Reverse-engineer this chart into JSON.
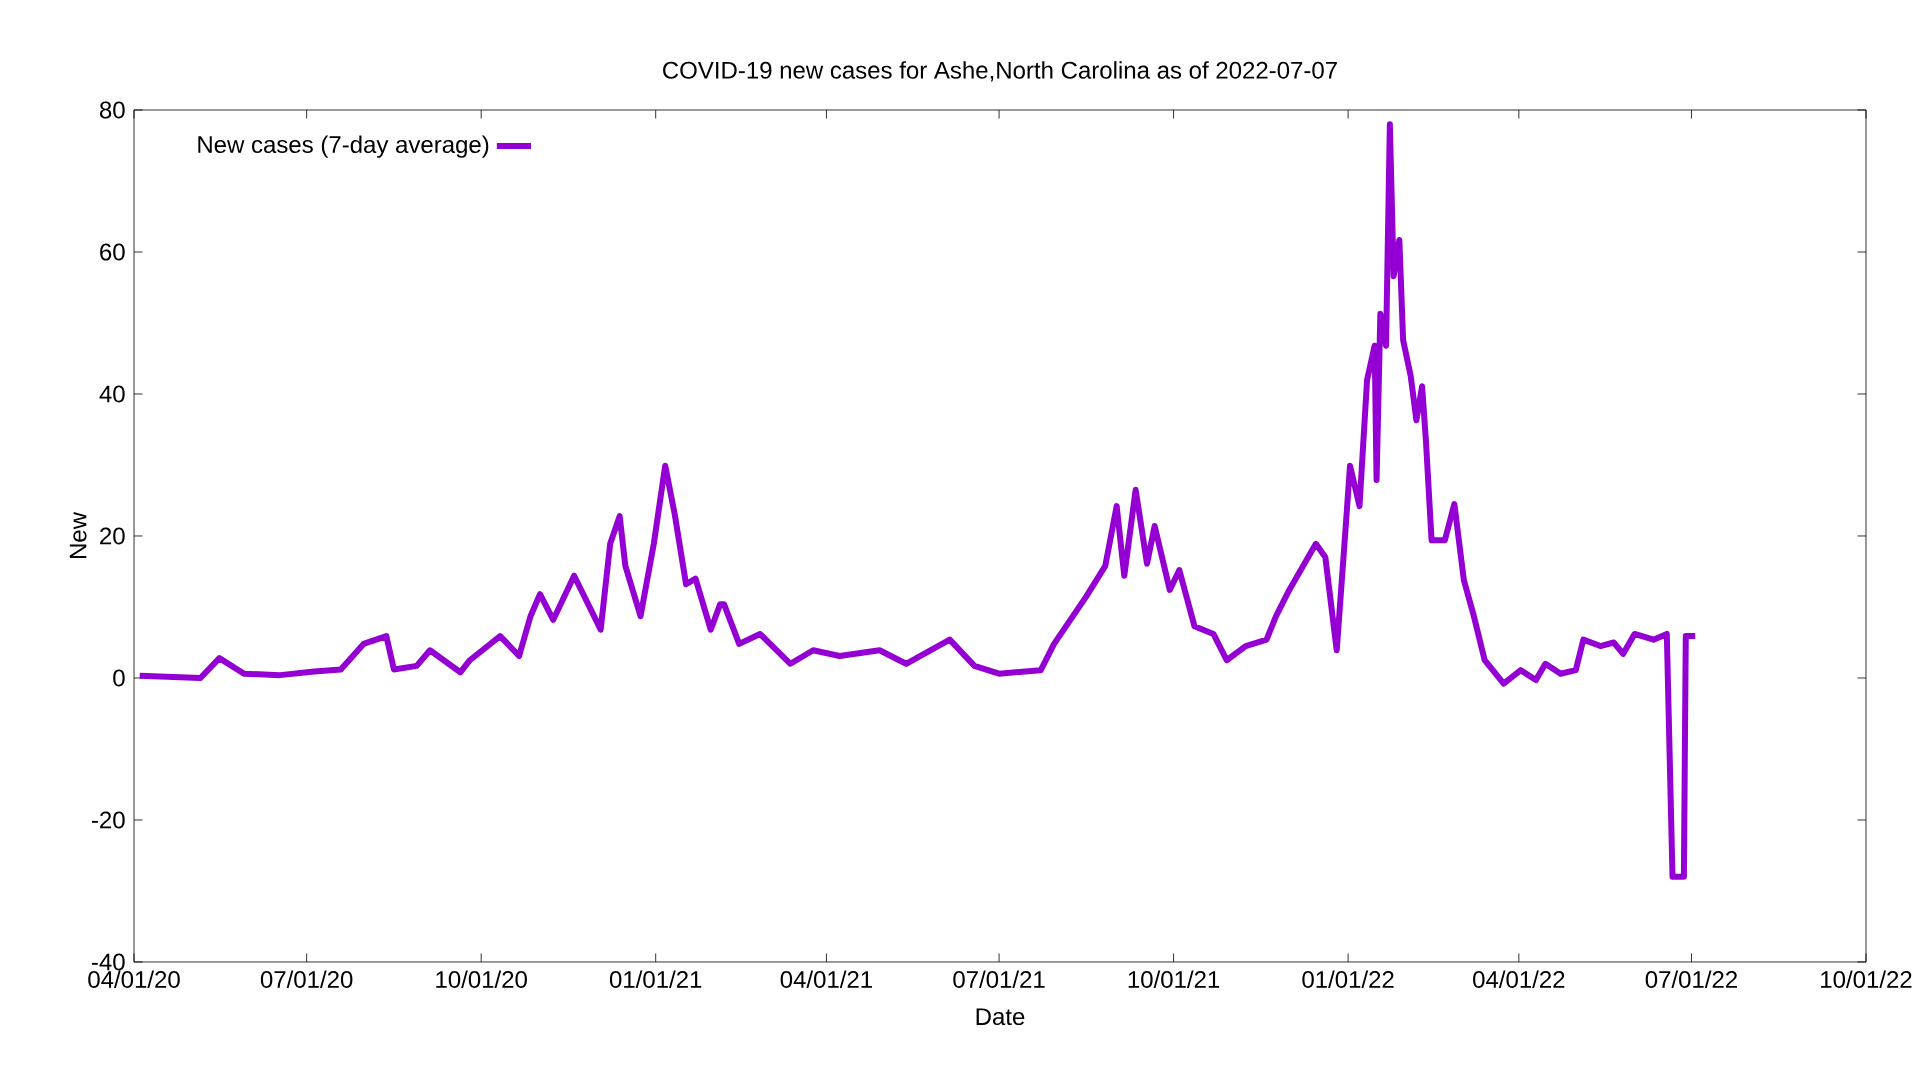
{
  "chart_data": {
    "type": "line",
    "title": "COVID-19 new cases for Ashe,North Carolina as of 2022-07-07",
    "xlabel": "Date",
    "ylabel": "New",
    "legend": "top left",
    "grid": false,
    "marker": "none",
    "line_style": "solid",
    "xlim": [
      "2020-04-01",
      "2022-10-01"
    ],
    "xticks": [
      {
        "value": "2020-04-01",
        "label": "04/01/20"
      },
      {
        "value": "2020-07-01",
        "label": "07/01/20"
      },
      {
        "value": "2020-10-01",
        "label": "10/01/20"
      },
      {
        "value": "2021-01-01",
        "label": "01/01/21"
      },
      {
        "value": "2021-04-01",
        "label": "04/01/21"
      },
      {
        "value": "2021-07-01",
        "label": "07/01/21"
      },
      {
        "value": "2021-10-01",
        "label": "10/01/21"
      },
      {
        "value": "2022-01-01",
        "label": "01/01/22"
      },
      {
        "value": "2022-04-01",
        "label": "04/01/22"
      },
      {
        "value": "2022-07-01",
        "label": "07/01/22"
      },
      {
        "value": "2022-10-01",
        "label": "10/01/22"
      }
    ],
    "ylim": [
      -40,
      80
    ],
    "yticks": [
      -40,
      -20,
      0,
      20,
      40,
      60,
      80
    ],
    "series": [
      {
        "name": "New cases (7-day average)",
        "color": "#9400d3",
        "x": [
          "2020-04-04",
          "2020-05-06",
          "2020-05-16",
          "2020-05-29",
          "2020-06-17",
          "2020-07-05",
          "2020-07-19",
          "2020-07-31",
          "2020-08-12",
          "2020-08-16",
          "2020-08-28",
          "2020-09-04",
          "2020-09-20",
          "2020-09-25",
          "2020-10-11",
          "2020-10-21",
          "2020-10-27",
          "2020-11-01",
          "2020-11-08",
          "2020-11-19",
          "2020-12-03",
          "2020-12-08",
          "2020-12-13",
          "2020-12-16",
          "2020-12-24",
          "2020-12-31",
          "2021-01-06",
          "2021-01-11",
          "2021-01-17",
          "2021-01-22",
          "2021-01-30",
          "2021-02-04",
          "2021-02-06",
          "2021-02-14",
          "2021-02-25",
          "2021-03-13",
          "2021-03-25",
          "2021-04-08",
          "2021-04-29",
          "2021-05-13",
          "2021-06-05",
          "2021-06-18",
          "2021-07-01",
          "2021-07-23",
          "2021-07-30",
          "2021-08-16",
          "2021-08-26",
          "2021-09-01",
          "2021-09-05",
          "2021-09-11",
          "2021-09-17",
          "2021-09-21",
          "2021-09-29",
          "2021-10-04",
          "2021-10-12",
          "2021-10-22",
          "2021-10-29",
          "2021-11-08",
          "2021-11-19",
          "2021-11-24",
          "2021-12-01",
          "2021-12-15",
          "2021-12-20",
          "2021-12-26",
          "2021-12-31",
          "2022-01-02",
          "2022-01-07",
          "2022-01-11",
          "2022-01-15",
          "2022-01-16",
          "2022-01-18",
          "2022-01-21",
          "2022-01-23",
          "2022-01-25",
          "2022-01-28",
          "2022-01-30",
          "2022-02-03",
          "2022-02-06",
          "2022-02-09",
          "2022-02-11",
          "2022-02-14",
          "2022-02-21",
          "2022-02-26",
          "2022-03-03",
          "2022-03-08",
          "2022-03-14",
          "2022-03-24",
          "2022-04-02",
          "2022-04-10",
          "2022-04-15",
          "2022-04-23",
          "2022-05-01",
          "2022-05-05",
          "2022-05-14",
          "2022-05-21",
          "2022-05-26",
          "2022-06-01",
          "2022-06-11",
          "2022-06-18",
          "2022-06-21",
          "2022-06-27",
          "2022-06-28",
          "2022-07-03"
        ],
        "values": [
          0.3,
          0,
          2.8,
          0.6,
          0.4,
          0.9,
          1.2,
          4.8,
          5.9,
          1.2,
          1.7,
          3.9,
          0.8,
          2.5,
          5.9,
          3.1,
          8.7,
          11.8,
          8.2,
          14.4,
          6.8,
          18.9,
          22.8,
          15.8,
          8.7,
          18.9,
          29.9,
          23.1,
          13.2,
          14.0,
          6.8,
          10.4,
          10.4,
          4.8,
          6.2,
          2.0,
          3.9,
          3.1,
          3.9,
          2.0,
          5.4,
          1.7,
          0.6,
          1.1,
          4.8,
          11.5,
          15.8,
          24.2,
          14.4,
          26.5,
          16.1,
          21.4,
          12.4,
          15.2,
          7.3,
          6.2,
          2.5,
          4.5,
          5.4,
          8.7,
          12.4,
          18.9,
          17.0,
          3.9,
          22.3,
          29.9,
          24.2,
          42.0,
          46.8,
          27.9,
          51.3,
          46.8,
          78.0,
          56.6,
          61.7,
          47.6,
          42.5,
          36.3,
          41.1,
          33.5,
          19.4,
          19.4,
          24.5,
          13.8,
          9.0,
          2.5,
          -0.8,
          1.1,
          -0.3,
          2.0,
          0.6,
          1.1,
          5.4,
          4.5,
          5.0,
          3.4,
          6.2,
          5.4,
          6.2,
          -28,
          -28,
          5.9,
          5.9
        ]
      }
    ]
  }
}
